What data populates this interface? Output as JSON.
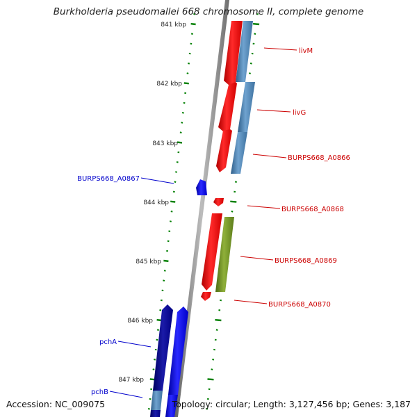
{
  "title": "Burkholderia pseudomallei 668 chromosome II, complete genome",
  "footer": {
    "accession": "Accession: NC_009075",
    "topology": "Topology: circular; Length: 3,127,456 bp; Genes: 3,187"
  },
  "colors": {
    "forward_cds": "#ff0000",
    "reverse_cds": "#0000ff",
    "outer_track_forward": "#4682b4",
    "outer_track_olive": "#6b8e23",
    "inner_track_reverse": "#0000cd",
    "backbone": "#808080",
    "tick": "#007f00",
    "forward_label": "#cc0000",
    "reverse_label": "#0000cc"
  },
  "ticks": [
    {
      "label": "841 kbp"
    },
    {
      "label": "842 kbp"
    },
    {
      "label": "843 kbp"
    },
    {
      "label": "844 kbp"
    },
    {
      "label": "845 kbp"
    },
    {
      "label": "846 kbp"
    },
    {
      "label": "847 kbp"
    }
  ],
  "features": [
    {
      "name": "livM",
      "strand": "forward"
    },
    {
      "name": "livG",
      "strand": "forward"
    },
    {
      "name": "BURPS668_A0866",
      "strand": "forward"
    },
    {
      "name": "BURPS668_A0867",
      "strand": "reverse"
    },
    {
      "name": "BURPS668_A0868",
      "strand": "forward"
    },
    {
      "name": "BURPS668_A0869",
      "strand": "forward"
    },
    {
      "name": "BURPS668_A0870",
      "strand": "forward"
    },
    {
      "name": "pchA",
      "strand": "reverse"
    },
    {
      "name": "pchB",
      "strand": "reverse"
    }
  ]
}
